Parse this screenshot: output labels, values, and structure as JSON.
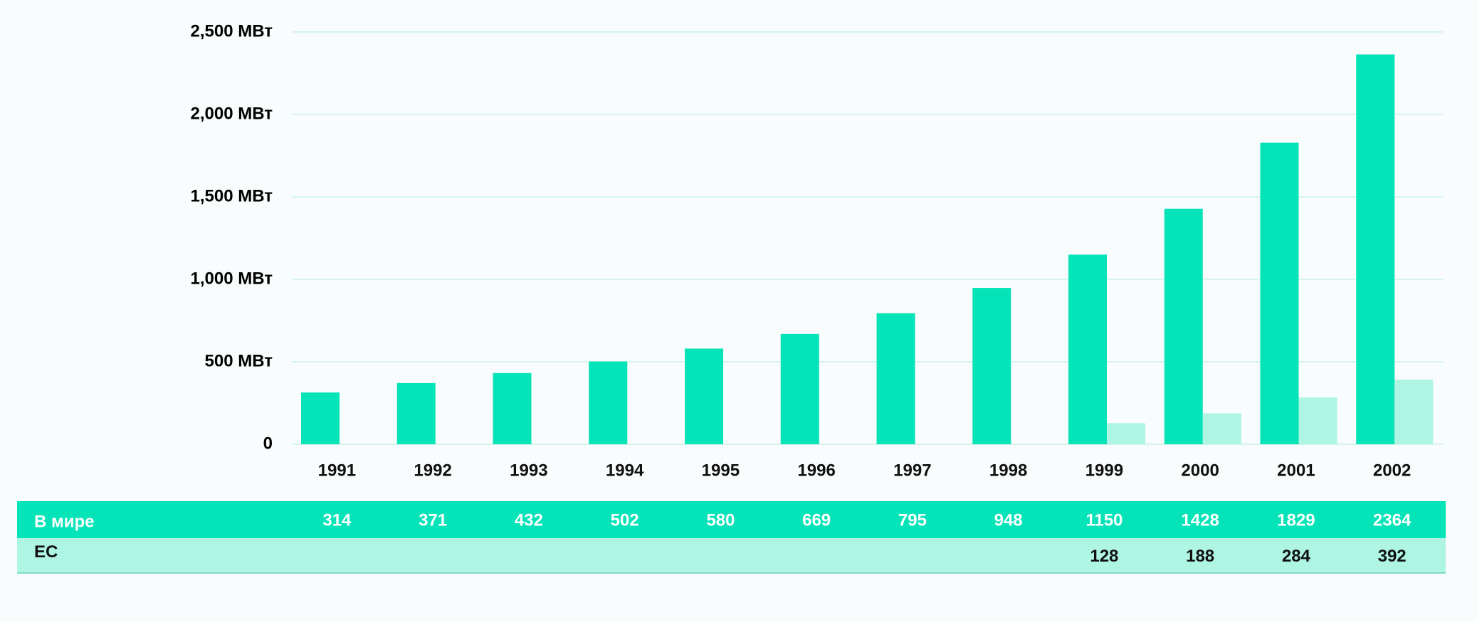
{
  "chart_data": {
    "type": "bar",
    "categories": [
      "1991",
      "1992",
      "1993",
      "1994",
      "1995",
      "1996",
      "1997",
      "1998",
      "1999",
      "2000",
      "2001",
      "2002"
    ],
    "series": [
      {
        "name": "В мире",
        "color": "#05e3b8",
        "values": [
          314,
          371,
          432,
          502,
          580,
          669,
          795,
          948,
          1150,
          1428,
          1829,
          2364
        ]
      },
      {
        "name": "ЕС",
        "color": "#aef5e3",
        "values": [
          null,
          null,
          null,
          null,
          null,
          null,
          null,
          null,
          128,
          188,
          284,
          392
        ]
      }
    ],
    "ylim": [
      0,
      2500
    ],
    "yticks": [
      0,
      {
        "value": 500,
        "label": "500 МВт"
      },
      {
        "value": 1000,
        "label": "1,000 МВт"
      },
      {
        "value": 1500,
        "label": "1,500 МВт"
      },
      {
        "value": 2000,
        "label": "2,000 МВт"
      },
      {
        "value": 2500,
        "label": "2,500 МВт"
      }
    ],
    "grid": true
  }
}
